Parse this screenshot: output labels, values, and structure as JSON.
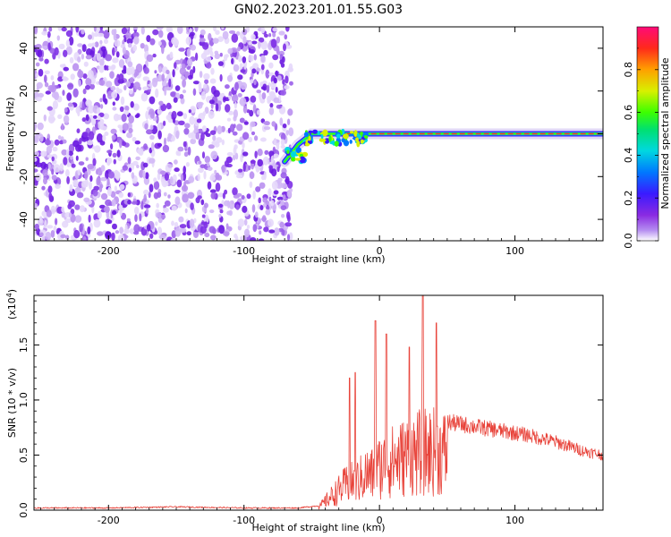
{
  "title": "GN02.2023.201.01.55.G03",
  "chart_data": [
    {
      "type": "heatmap",
      "xlabel": "Height of straight line (km)",
      "ylabel": "Frequency (Hz)",
      "xlim": [
        -255,
        165
      ],
      "ylim": [
        -50,
        50
      ],
      "xticks": [
        -200,
        -100,
        0,
        100
      ],
      "yticks": [
        -40,
        -20,
        0,
        20,
        40
      ],
      "colorbar": {
        "label": "Normalized spectral amplitude",
        "range": [
          0,
          1
        ],
        "ticks": [
          "0.0",
          "0.2",
          "0.4",
          "0.6",
          "0.8"
        ],
        "tick_values": [
          0.0,
          0.2,
          0.4,
          0.6,
          0.8
        ]
      },
      "noise_region_x": [
        -255,
        -65
      ],
      "signal_track": [
        {
          "x": -70,
          "y": -13
        },
        {
          "x": -60,
          "y": -5
        },
        {
          "x": -50,
          "y": 0
        },
        {
          "x": -40,
          "y": 0
        },
        {
          "x": -20,
          "y": 0
        },
        {
          "x": 0,
          "y": 0
        },
        {
          "x": 50,
          "y": 0
        },
        {
          "x": 100,
          "y": 0
        },
        {
          "x": 165,
          "y": 0
        }
      ]
    },
    {
      "type": "line",
      "xlabel": "Height of straight line (km)",
      "ylabel": "SNR (10 * v/v)",
      "scale_label": "(x10",
      "scale_exp": "4",
      "scale_close": ")",
      "xlim": [
        -255,
        165
      ],
      "ylim": [
        0,
        1.95
      ],
      "xticks": [
        -200,
        -100,
        0,
        100
      ],
      "yticks": [
        "0.0",
        "0.5",
        "1.0",
        "1.5"
      ],
      "ytick_values": [
        0.0,
        0.5,
        1.0,
        1.5
      ],
      "line_color": "#e8433a",
      "series": [
        {
          "x": [
            -255,
            -200,
            -150,
            -100,
            -60,
            -45,
            -35,
            -25,
            -15,
            -10,
            -5,
            0,
            10,
            20,
            30,
            40,
            50,
            60,
            70,
            80,
            90,
            100,
            110,
            120,
            130,
            140,
            150,
            165
          ],
          "y": [
            0.02,
            0.02,
            0.03,
            0.02,
            0.02,
            0.04,
            0.2,
            0.35,
            0.42,
            0.5,
            0.5,
            0.6,
            0.68,
            0.75,
            0.8,
            0.82,
            0.8,
            0.78,
            0.76,
            0.74,
            0.72,
            0.7,
            0.68,
            0.65,
            0.62,
            0.58,
            0.54,
            0.5
          ]
        }
      ],
      "spikes": [
        {
          "x": -22,
          "y": 1.2
        },
        {
          "x": -18,
          "y": 1.25
        },
        {
          "x": -3,
          "y": 1.72
        },
        {
          "x": 5,
          "y": 1.6
        },
        {
          "x": 22,
          "y": 1.48
        },
        {
          "x": 32,
          "y": 1.95
        },
        {
          "x": 42,
          "y": 1.7
        }
      ]
    }
  ]
}
